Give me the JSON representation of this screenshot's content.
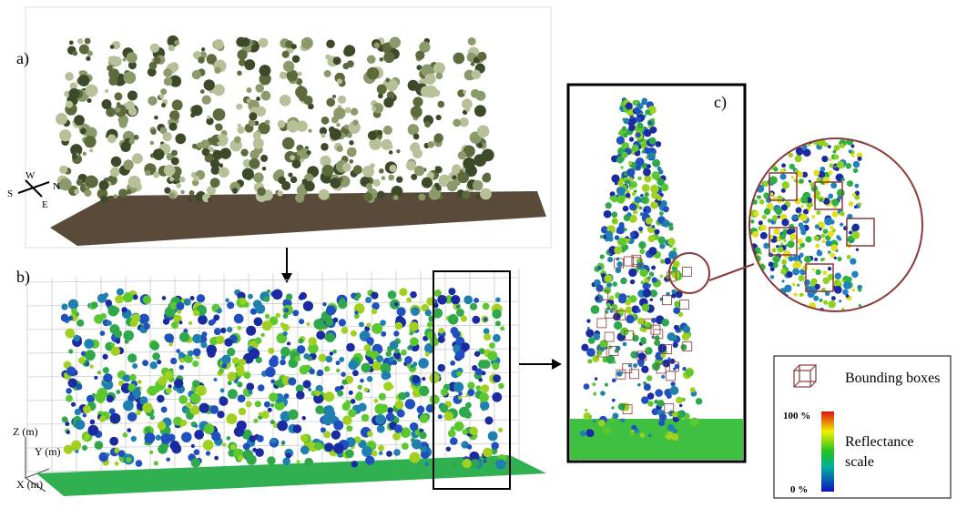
{
  "panels": [
    {
      "label": "a)"
    },
    {
      "label": "b)"
    },
    {
      "label": "c)"
    }
  ],
  "compass": {
    "west": "W",
    "south": "S",
    "north": "N",
    "east": "E"
  },
  "axes": {
    "z": "Z (m)",
    "y": "Y (m)",
    "x": "X (m)"
  },
  "legend": {
    "bounding_boxes": "Bounding boxes",
    "scale_max": "100 %",
    "scale_min": "0 %",
    "scale_title": [
      "Reflectance",
      "scale"
    ]
  }
}
